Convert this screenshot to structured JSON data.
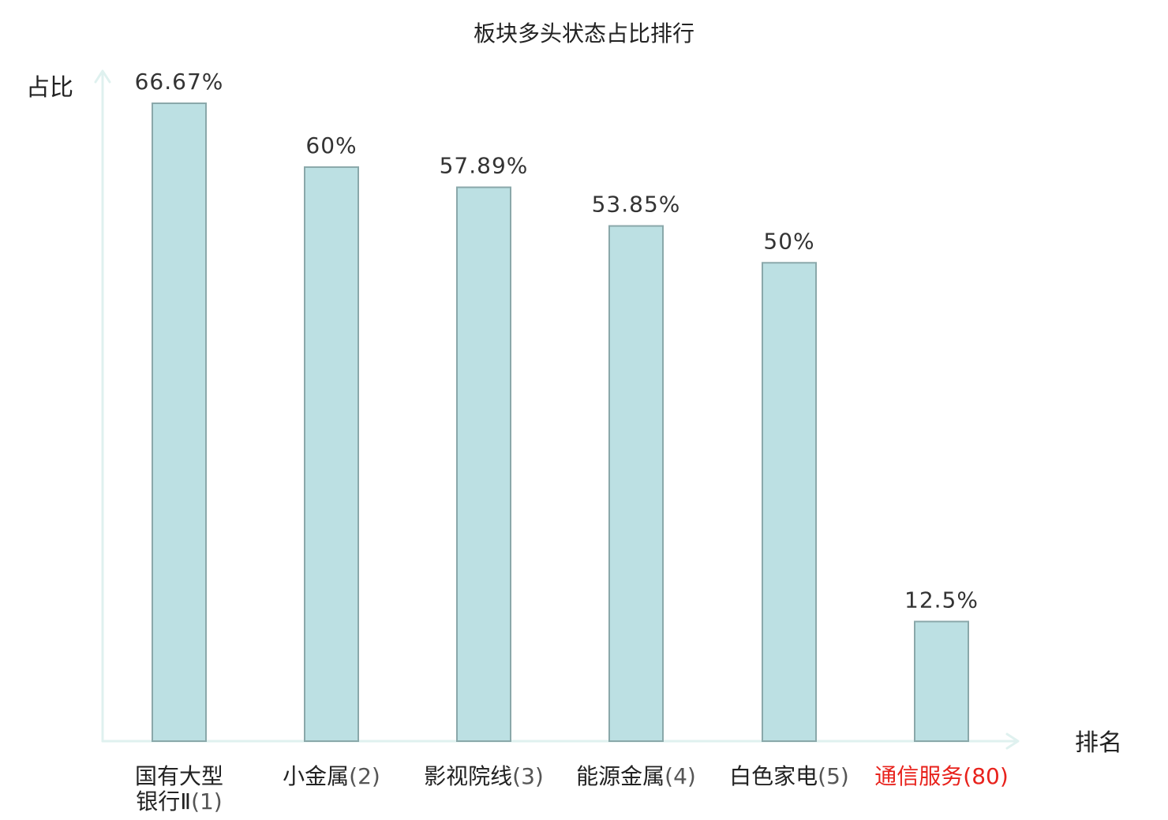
{
  "chart_data": {
    "type": "bar",
    "title": "板块多头状态占比排行",
    "ylabel": "占比",
    "xlabel": "排名",
    "ylim": [
      0,
      70
    ],
    "grid": false,
    "categories": [
      {
        "name_lines": [
          "国有大型",
          "银行Ⅱ"
        ],
        "rank": "(1)",
        "highlight": false
      },
      {
        "name_lines": [
          "小金属"
        ],
        "rank": "(2)",
        "highlight": false
      },
      {
        "name_lines": [
          "影视院线"
        ],
        "rank": "(3)",
        "highlight": false
      },
      {
        "name_lines": [
          "能源金属"
        ],
        "rank": "(4)",
        "highlight": false
      },
      {
        "name_lines": [
          "白色家电"
        ],
        "rank": "(5)",
        "highlight": false
      },
      {
        "name_lines": [
          "通信服务"
        ],
        "rank": "(80)",
        "highlight": true
      }
    ],
    "values": [
      66.67,
      60,
      57.89,
      53.85,
      50,
      12.5
    ],
    "value_labels": [
      "66.67%",
      "60%",
      "57.89%",
      "53.85%",
      "50%",
      "12.5%"
    ]
  },
  "colors": {
    "bar_fill": "#bce0e3",
    "bar_stroke": "#8aa8aa",
    "axis": "#dff1ef",
    "text": "#222222",
    "rank_text": "#555555",
    "highlight": "#e8221c"
  }
}
